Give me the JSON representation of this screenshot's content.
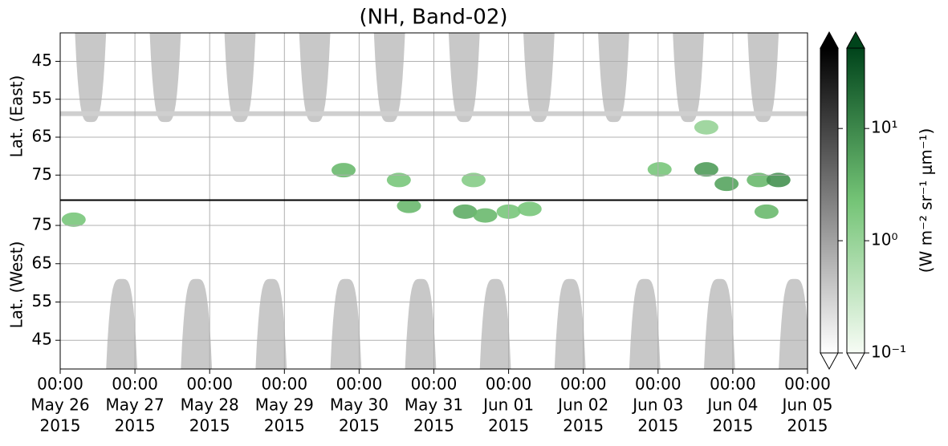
{
  "chart_data": {
    "type": "heatmap",
    "title": "(NH, Band-02)",
    "xlim": [
      "2015-05-26T00:00",
      "2015-06-05T00:00"
    ],
    "xticks": [
      {
        "value": "2015-05-26T00:00",
        "label": [
          "00:00",
          "May 26",
          "2015"
        ]
      },
      {
        "value": "2015-05-27T00:00",
        "label": [
          "00:00",
          "May 27",
          "2015"
        ]
      },
      {
        "value": "2015-05-28T00:00",
        "label": [
          "00:00",
          "May 28",
          "2015"
        ]
      },
      {
        "value": "2015-05-29T00:00",
        "label": [
          "00:00",
          "May 29",
          "2015"
        ]
      },
      {
        "value": "2015-05-30T00:00",
        "label": [
          "00:00",
          "May 30",
          "2015"
        ]
      },
      {
        "value": "2015-05-31T00:00",
        "label": [
          "00:00",
          "May 31",
          "2015"
        ]
      },
      {
        "value": "2015-06-01T00:00",
        "label": [
          "00:00",
          "Jun 01",
          "2015"
        ]
      },
      {
        "value": "2015-06-02T00:00",
        "label": [
          "00:00",
          "Jun 02",
          "2015"
        ]
      },
      {
        "value": "2015-06-03T00:00",
        "label": [
          "00:00",
          "Jun 03",
          "2015"
        ]
      },
      {
        "value": "2015-06-04T00:00",
        "label": [
          "00:00",
          "Jun 04",
          "2015"
        ]
      },
      {
        "value": "2015-06-05T00:00",
        "label": [
          "00:00",
          "Jun 05",
          "2015"
        ]
      }
    ],
    "grid": true,
    "panels": [
      {
        "ylabel": "Lat. (East)",
        "ylim": [
          37.5,
          81.5
        ],
        "inverted": true,
        "yticks": [
          45,
          55,
          65,
          75
        ],
        "mask": {
          "x": [
            "2015-05-26T09:45",
            "2015-05-27T09:45",
            "2015-05-28T09:45",
            "2015-05-29T09:45",
            "2015-05-30T09:45",
            "2015-05-31T09:45",
            "2015-06-01T09:45",
            "2015-06-02T09:45",
            "2015-06-03T09:45",
            "2015-06-04T09:45"
          ],
          "tip_lat": 61,
          "halfwidth_hours": 5
        },
        "band_lat": 58.8,
        "patches": {
          "x": [
            "2015-05-29T19:00",
            "2015-05-30T12:45",
            "2015-05-31T12:45",
            "2015-06-03T00:30",
            "2015-06-03T15:30",
            "2015-06-03T22:00",
            "2015-06-04T08:20",
            "2015-06-04T14:40",
            "2015-06-03T15:30"
          ],
          "lat": [
            73.7,
            76.3,
            76.3,
            73.5,
            73.5,
            77.3,
            76.3,
            76.3,
            62.4
          ],
          "values": [
            3,
            2,
            1.5,
            2,
            6,
            5,
            3,
            8,
            1
          ]
        }
      },
      {
        "ylabel": "Lat. (West)",
        "ylim": [
          37.5,
          81.5
        ],
        "inverted": false,
        "yticks": [
          45,
          55,
          65,
          75
        ],
        "mask": {
          "x": [
            "2015-05-26T19:45",
            "2015-05-27T19:45",
            "2015-05-28T19:45",
            "2015-05-29T19:45",
            "2015-05-30T19:45",
            "2015-05-31T19:45",
            "2015-06-01T19:45",
            "2015-06-02T19:45",
            "2015-06-03T19:45",
            "2015-06-04T19:45"
          ],
          "tip_lat": 61,
          "halfwidth_hours": 5
        },
        "patches": {
          "x": [
            "2015-05-26T04:20",
            "2015-05-30T16:00",
            "2015-05-31T10:00",
            "2015-05-31T16:30",
            "2015-06-01T00:00",
            "2015-06-01T06:45",
            "2015-06-04T10:50"
          ],
          "lat": [
            76.5,
            80.1,
            78.6,
            77.6,
            78.6,
            79.3,
            78.6
          ],
          "values": [
            2,
            3,
            4,
            3,
            2,
            2,
            3
          ]
        }
      }
    ],
    "colorbar": {
      "label": "(W m⁻² sr⁻¹ μm⁻¹)",
      "log": true,
      "clim": [
        0.1,
        52
      ],
      "cmaps": [
        "Greys",
        "Greens"
      ],
      "ticks": [
        {
          "value": 0.1,
          "label": "10⁻¹"
        },
        {
          "value": 1,
          "label": "10⁰"
        },
        {
          "value": 10,
          "label": "10¹"
        }
      ]
    }
  }
}
